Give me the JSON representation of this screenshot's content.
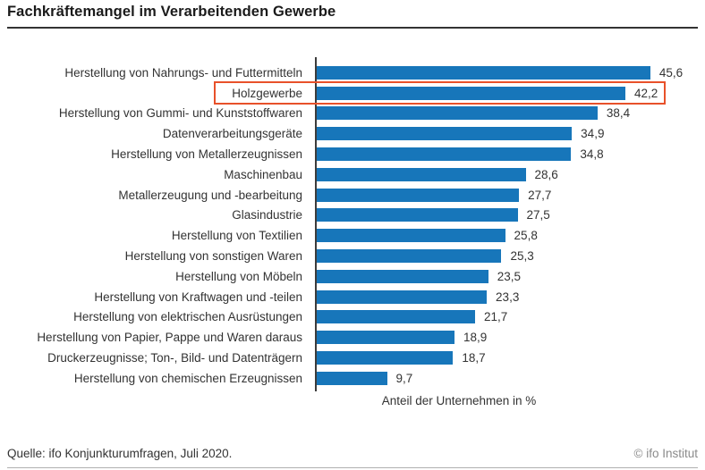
{
  "title": "Fachkräftemangel im Verarbeitenden Gewerbe",
  "chart_data": {
    "type": "bar",
    "orientation": "horizontal",
    "title": "Fachkräftemangel im Verarbeitenden Gewerbe",
    "xlabel": "Anteil der Unternehmen in %",
    "xlim": [
      0,
      50
    ],
    "grid": false,
    "legend": "none",
    "bar_color": "#1776ba",
    "highlight_border_color": "#e8512a",
    "highlighted_category": "Holzgewerbe",
    "categories": [
      "Herstellung von Nahrungs- und Futtermitteln",
      "Holzgewerbe",
      "Herstellung von Gummi- und Kunststoffwaren",
      "Datenverarbeitungsgeräte",
      "Herstellung von Metallerzeugnissen",
      "Maschinenbau",
      "Metallerzeugung und -bearbeitung",
      "Glasindustrie",
      "Herstellung von Textilien",
      "Herstellung von sonstigen Waren",
      "Herstellung von Möbeln",
      "Herstellung von Kraftwagen und -teilen",
      "Herstellung von elektrischen Ausrüstungen",
      "Herstellung von Papier, Pappe und Waren daraus",
      "Druckerzeugnisse; Ton-, Bild- und Datenträgern",
      "Herstellung von chemischen Erzeugnissen"
    ],
    "values": [
      45.6,
      42.2,
      38.4,
      34.9,
      34.8,
      28.6,
      27.7,
      27.5,
      25.8,
      25.3,
      23.5,
      23.3,
      21.7,
      18.9,
      18.7,
      9.7
    ],
    "value_labels": [
      "45,6",
      "42,2",
      "38,4",
      "34,9",
      "34,8",
      "28,6",
      "27,7",
      "27,5",
      "25,8",
      "25,3",
      "23,5",
      "23,3",
      "21,7",
      "18,9",
      "18,7",
      "9,7"
    ]
  },
  "axis_label": "Anteil der Unternehmen in %",
  "footer": {
    "source": "Quelle: ifo Konjunkturumfragen, Juli 2020.",
    "copyright": "© ifo Institut"
  }
}
